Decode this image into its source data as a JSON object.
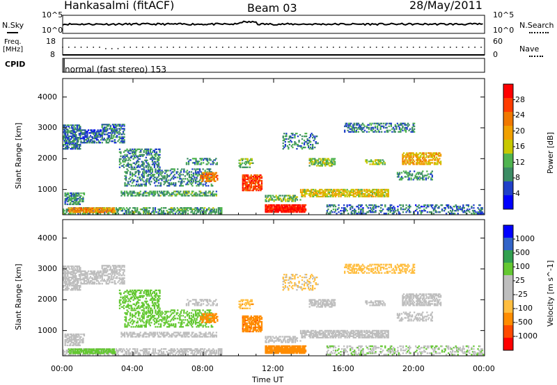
{
  "header": {
    "station": "Hankasalmi (fitACF)",
    "beam": "Beam 03",
    "date": "28/May/2011"
  },
  "top_panels": {
    "nsky_label": "N.Sky",
    "nsky_ticks": [
      "10^5",
      "10^0"
    ],
    "nsearch_label": "N.Search",
    "nsearch_ticks": [
      "10^5",
      "10^0"
    ],
    "freq_label_1": "Freq.",
    "freq_label_2": "[MHz]",
    "freq_ticks": [
      "18",
      "8"
    ],
    "nave_label": "Nave",
    "nave_ticks": [
      "60",
      "0"
    ],
    "cpid_label": "CPID",
    "cpid_text": "normal (fast stereo) 153"
  },
  "colors": {
    "power_scale": [
      "#0000ff",
      "#2040c8",
      "#3c8c64",
      "#50b450",
      "#c8c800",
      "#f0a000",
      "#f07800",
      "#ff3c00",
      "#ff0000"
    ],
    "velocity_scale": [
      "#ff0000",
      "#ff4a00",
      "#ff8c00",
      "#ffbe40",
      "#bebebe",
      "#bebebe",
      "#64c832",
      "#32a050",
      "#3264c8",
      "#0000ff"
    ]
  },
  "chart_data": [
    {
      "type": "heatmap",
      "title": "",
      "xlabel": "Time UT",
      "ylabel": "Slant Range [km]",
      "x_ticks": [
        "00:00",
        "04:00",
        "08:00",
        "12:00",
        "16:00",
        "20:00",
        "00:00"
      ],
      "xlim_hours": [
        0,
        24
      ],
      "y_ticks": [
        "4000",
        "3000",
        "2000",
        "1000"
      ],
      "ylim": [
        180,
        4600
      ],
      "colorbar_label": "Power [dB]",
      "colorbar_ticks": [
        "28",
        "24",
        "20",
        "16",
        "12",
        "8",
        "4"
      ],
      "colorbar_range": [
        0,
        30
      ]
    },
    {
      "type": "heatmap",
      "title": "",
      "xlabel": "Time UT",
      "ylabel": "Slant Range [km]",
      "x_ticks": [
        "00:00",
        "04:00",
        "08:00",
        "12:00",
        "16:00",
        "20:00",
        "00:00"
      ],
      "xlim_hours": [
        0,
        24
      ],
      "y_ticks": [
        "4000",
        "3000",
        "2000",
        "1000"
      ],
      "ylim": [
        180,
        4600
      ],
      "colorbar_label": "Velocity [m s^-1]",
      "colorbar_ticks": [
        "1000",
        "500",
        "100",
        "25",
        "-25",
        "-100",
        "-500",
        "-1000"
      ]
    }
  ],
  "scatter_regions": [
    {
      "t0": 0.0,
      "t1": 9.0,
      "r0": 200,
      "r1": 420,
      "density": 0.55,
      "power": 10,
      "vel": 2
    },
    {
      "t0": 0.3,
      "t1": 3.0,
      "r0": 240,
      "r1": 380,
      "density": 0.8,
      "power": 20,
      "vel": 40
    },
    {
      "t0": 0.1,
      "t1": 1.2,
      "r0": 500,
      "r1": 900,
      "density": 0.6,
      "power": 9,
      "vel": 3
    },
    {
      "t0": 0.0,
      "t1": 1.0,
      "r0": 2300,
      "r1": 3100,
      "density": 0.65,
      "power": 7,
      "vel": 0
    },
    {
      "t0": 1.0,
      "t1": 2.2,
      "r0": 2500,
      "r1": 2950,
      "density": 0.6,
      "power": 6,
      "vel": 0
    },
    {
      "t0": 2.2,
      "t1": 3.5,
      "r0": 2500,
      "r1": 3100,
      "density": 0.5,
      "power": 7,
      "vel": 0
    },
    {
      "t0": 3.2,
      "t1": 5.5,
      "r0": 1700,
      "r1": 2300,
      "density": 0.45,
      "power": 8,
      "vel": 60
    },
    {
      "t0": 3.5,
      "t1": 8.5,
      "r0": 1100,
      "r1": 1650,
      "density": 0.35,
      "power": 8,
      "vel": 50
    },
    {
      "t0": 3.3,
      "t1": 8.8,
      "r0": 780,
      "r1": 920,
      "density": 0.55,
      "power": 10,
      "vel": 10
    },
    {
      "t0": 7.8,
      "t1": 8.8,
      "r0": 1250,
      "r1": 1550,
      "density": 0.55,
      "power": 22,
      "vel": -300
    },
    {
      "t0": 7.0,
      "t1": 8.8,
      "r0": 1800,
      "r1": 2000,
      "density": 0.35,
      "power": 9,
      "vel": 10
    },
    {
      "t0": 10.2,
      "t1": 11.3,
      "r0": 950,
      "r1": 1450,
      "density": 0.75,
      "power": 25,
      "vel": -400
    },
    {
      "t0": 10.0,
      "t1": 10.8,
      "r0": 1700,
      "r1": 2000,
      "density": 0.45,
      "power": 12,
      "vel": -80
    },
    {
      "t0": 11.5,
      "t1": 13.8,
      "r0": 250,
      "r1": 480,
      "density": 0.9,
      "power": 28,
      "vel": -150
    },
    {
      "t0": 13.5,
      "t1": 18.5,
      "r0": 750,
      "r1": 1000,
      "density": 0.65,
      "power": 16,
      "vel": 5
    },
    {
      "t0": 11.5,
      "t1": 13.5,
      "r0": 600,
      "r1": 800,
      "density": 0.45,
      "power": 12,
      "vel": 10
    },
    {
      "t0": 16.0,
      "t1": 20.0,
      "r0": 2850,
      "r1": 3150,
      "density": 0.45,
      "power": 8,
      "vel": -60
    },
    {
      "t0": 14.0,
      "t1": 15.5,
      "r0": 1750,
      "r1": 2000,
      "density": 0.55,
      "power": 13,
      "vel": 3
    },
    {
      "t0": 19.3,
      "t1": 21.5,
      "r0": 1800,
      "r1": 2200,
      "density": 0.6,
      "power": 18,
      "vel": 8
    },
    {
      "t0": 17.2,
      "t1": 18.3,
      "r0": 1800,
      "r1": 1950,
      "density": 0.5,
      "power": 13,
      "vel": 5
    },
    {
      "t0": 15.0,
      "t1": 23.9,
      "r0": 200,
      "r1": 500,
      "density": 0.35,
      "power": 7,
      "vel": 20
    },
    {
      "t0": 12.5,
      "t1": 14.5,
      "r0": 2300,
      "r1": 2800,
      "density": 0.3,
      "power": 8,
      "vel": -30
    },
    {
      "t0": 19.0,
      "t1": 21.0,
      "r0": 1300,
      "r1": 1600,
      "density": 0.4,
      "power": 9,
      "vel": 10
    }
  ]
}
